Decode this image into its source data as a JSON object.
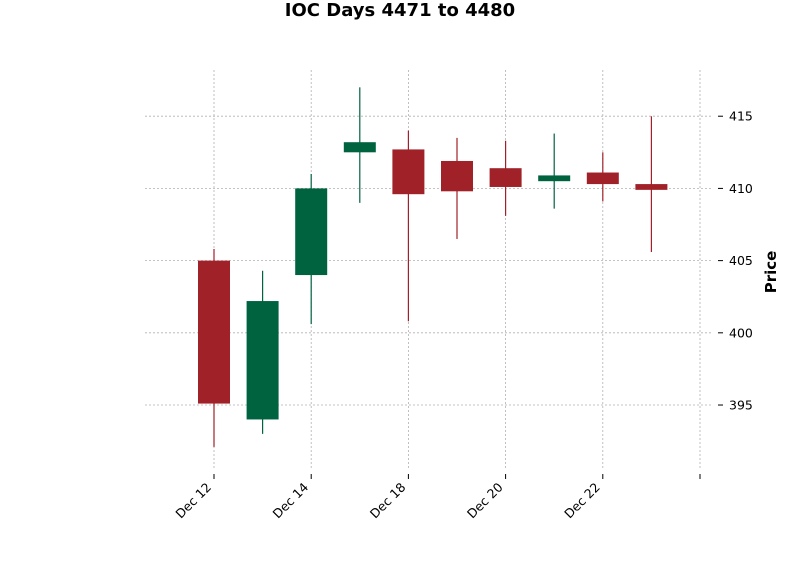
{
  "chart_data": {
    "type": "candlestick",
    "title": "IOC Days 4471 to 4480",
    "ylabel": "Price",
    "xlabel": "",
    "ylim": [
      390.5,
      418.2
    ],
    "yticks": [
      395,
      400,
      405,
      410,
      415
    ],
    "xtick_labels": [
      {
        "label": "Dec 12",
        "index": 0
      },
      {
        "label": "Dec 14",
        "index": 2
      },
      {
        "label": "Dec 18",
        "index": 4
      },
      {
        "label": "Dec 20",
        "index": 6
      },
      {
        "label": "Dec 22",
        "index": 8
      },
      {
        "label": "",
        "index": 10
      }
    ],
    "grid": true,
    "colors": {
      "up": "#006340",
      "down": "#a02128",
      "grid": "#b0b0b0"
    },
    "candles": [
      {
        "open": 405.0,
        "high": 405.8,
        "low": 392.1,
        "close": 395.1
      },
      {
        "open": 394.0,
        "high": 404.3,
        "low": 393.0,
        "close": 402.2
      },
      {
        "open": 404.0,
        "high": 411.0,
        "low": 400.6,
        "close": 410.0
      },
      {
        "open": 412.5,
        "high": 417.0,
        "low": 409.0,
        "close": 413.2
      },
      {
        "open": 412.7,
        "high": 414.0,
        "low": 400.8,
        "close": 409.6
      },
      {
        "open": 411.9,
        "high": 413.5,
        "low": 406.5,
        "close": 409.8
      },
      {
        "open": 411.4,
        "high": 413.3,
        "low": 408.1,
        "close": 410.1
      },
      {
        "open": 410.5,
        "high": 413.8,
        "low": 408.6,
        "close": 410.9
      },
      {
        "open": 411.1,
        "high": 412.5,
        "low": 409.1,
        "close": 410.3
      },
      {
        "open": 410.3,
        "high": 415.0,
        "low": 405.6,
        "close": 409.9
      }
    ]
  }
}
